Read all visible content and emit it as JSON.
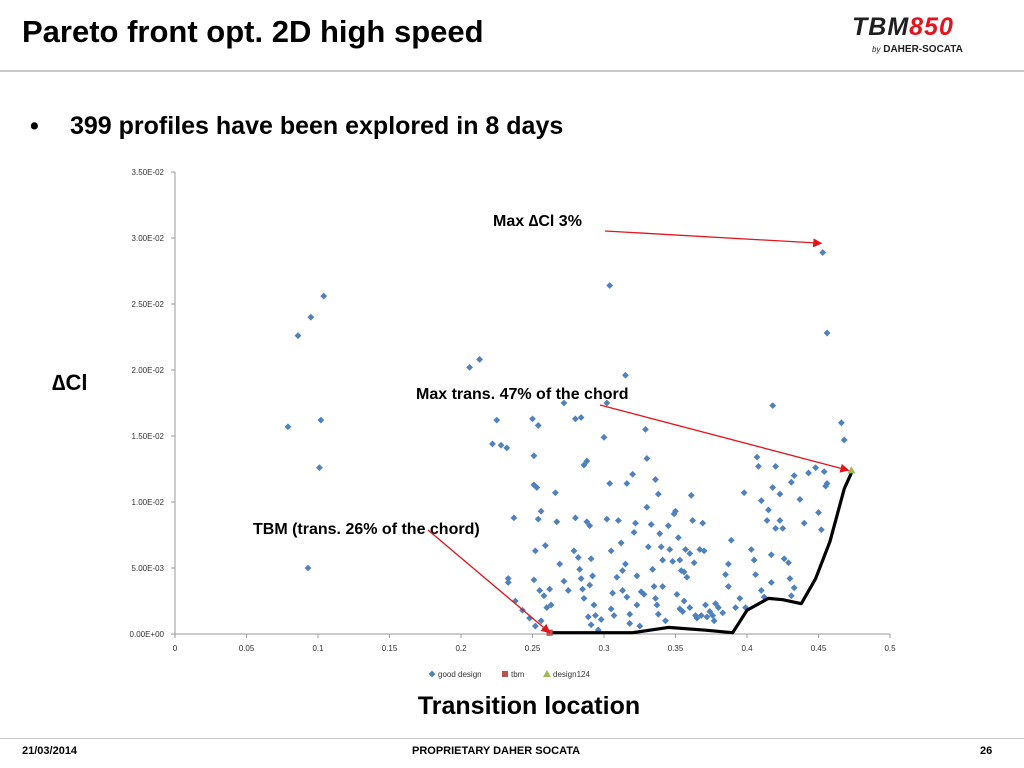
{
  "slide": {
    "title": "Pareto front opt. 2D high speed",
    "bullet_marker": "•",
    "bullet_text": "399 profiles have been explored in 8 days"
  },
  "logo": {
    "part1": "TBM",
    "part2": "850",
    "by": "by",
    "company": "DAHER-SOCATA"
  },
  "footer": {
    "date": "21/03/2014",
    "center": "PROPRIETARY DAHER SOCATA",
    "page": "26"
  },
  "colors": {
    "good_design": "#4f81bd",
    "tbm": "#c0504d",
    "design124": "#9bbb59",
    "arrow": "#e3141b",
    "pareto": "#000000"
  },
  "chart_data": {
    "type": "scatter",
    "xlabel": "Transition location",
    "ylabel": "∆Cl",
    "xlim": [
      0,
      0.5
    ],
    "ylim": [
      0,
      0.035
    ],
    "x_ticks": [
      "0",
      "0.05",
      "0.1",
      "0.15",
      "0.2",
      "0.25",
      "0.3",
      "0.35",
      "0.4",
      "0.45",
      "0.5"
    ],
    "y_ticks": [
      "0.00E+00",
      "5.00E-03",
      "1.00E-02",
      "1.50E-02",
      "2.00E-02",
      "2.50E-02",
      "3.00E-02",
      "3.50E-02"
    ],
    "grid": false,
    "legend_position": "bottom",
    "series": [
      {
        "name": "good design",
        "marker": "diamond",
        "points": [
          [
            0.079,
            0.0157
          ],
          [
            0.086,
            0.0226
          ],
          [
            0.095,
            0.024
          ],
          [
            0.104,
            0.0256
          ],
          [
            0.102,
            0.0162
          ],
          [
            0.101,
            0.0126
          ],
          [
            0.093,
            0.005
          ],
          [
            0.206,
            0.0202
          ],
          [
            0.213,
            0.0208
          ],
          [
            0.222,
            0.0144
          ],
          [
            0.225,
            0.0162
          ],
          [
            0.228,
            0.0143
          ],
          [
            0.232,
            0.0141
          ],
          [
            0.233,
            0.0042
          ],
          [
            0.233,
            0.0039
          ],
          [
            0.237,
            0.0088
          ],
          [
            0.238,
            0.0025
          ],
          [
            0.243,
            0.0018
          ],
          [
            0.248,
            0.0012
          ],
          [
            0.252,
            0.0006
          ],
          [
            0.255,
            0.0033
          ],
          [
            0.258,
            0.0029
          ],
          [
            0.26,
            0.002
          ],
          [
            0.256,
            0.001
          ],
          [
            0.259,
            0.0004
          ],
          [
            0.263,
            0.0022
          ],
          [
            0.25,
            0.0163
          ],
          [
            0.254,
            0.0158
          ],
          [
            0.251,
            0.0135
          ],
          [
            0.251,
            0.0113
          ],
          [
            0.253,
            0.0111
          ],
          [
            0.256,
            0.0093
          ],
          [
            0.254,
            0.0087
          ],
          [
            0.252,
            0.0063
          ],
          [
            0.259,
            0.0067
          ],
          [
            0.251,
            0.0041
          ],
          [
            0.262,
            0.0034
          ],
          [
            0.266,
            0.0107
          ],
          [
            0.267,
            0.0085
          ],
          [
            0.269,
            0.0053
          ],
          [
            0.272,
            0.004
          ],
          [
            0.275,
            0.0033
          ],
          [
            0.272,
            0.0175
          ],
          [
            0.28,
            0.0163
          ],
          [
            0.284,
            0.0164
          ],
          [
            0.286,
            0.0128
          ],
          [
            0.288,
            0.0131
          ],
          [
            0.28,
            0.0088
          ],
          [
            0.279,
            0.0063
          ],
          [
            0.282,
            0.0058
          ],
          [
            0.283,
            0.0049
          ],
          [
            0.284,
            0.0042
          ],
          [
            0.285,
            0.0034
          ],
          [
            0.286,
            0.0027
          ],
          [
            0.288,
            0.0085
          ],
          [
            0.29,
            0.0082
          ],
          [
            0.291,
            0.0057
          ],
          [
            0.292,
            0.0044
          ],
          [
            0.29,
            0.0037
          ],
          [
            0.289,
            0.0013
          ],
          [
            0.291,
            0.0007
          ],
          [
            0.293,
            0.0022
          ],
          [
            0.294,
            0.0014
          ],
          [
            0.296,
            0.0003
          ],
          [
            0.298,
            0.0011
          ],
          [
            0.3,
            0.0149
          ],
          [
            0.302,
            0.0087
          ],
          [
            0.302,
            0.0175
          ],
          [
            0.304,
            0.0264
          ],
          [
            0.304,
            0.0114
          ],
          [
            0.305,
            0.0063
          ],
          [
            0.306,
            0.0031
          ],
          [
            0.305,
            0.0019
          ],
          [
            0.307,
            0.0014
          ],
          [
            0.309,
            0.0043
          ],
          [
            0.31,
            0.0086
          ],
          [
            0.312,
            0.0069
          ],
          [
            0.313,
            0.0048
          ],
          [
            0.313,
            0.0033
          ],
          [
            0.315,
            0.0196
          ],
          [
            0.316,
            0.0114
          ],
          [
            0.315,
            0.0053
          ],
          [
            0.316,
            0.0028
          ],
          [
            0.318,
            0.0015
          ],
          [
            0.318,
            0.0008
          ],
          [
            0.32,
            0.0121
          ],
          [
            0.321,
            0.0077
          ],
          [
            0.322,
            0.0084
          ],
          [
            0.323,
            0.0044
          ],
          [
            0.323,
            0.0022
          ],
          [
            0.325,
            0.0006
          ],
          [
            0.326,
            0.0032
          ],
          [
            0.328,
            0.003
          ],
          [
            0.329,
            0.0155
          ],
          [
            0.33,
            0.0133
          ],
          [
            0.33,
            0.0096
          ],
          [
            0.331,
            0.0066
          ],
          [
            0.333,
            0.0083
          ],
          [
            0.334,
            0.0049
          ],
          [
            0.335,
            0.0036
          ],
          [
            0.336,
            0.0027
          ],
          [
            0.337,
            0.0022
          ],
          [
            0.338,
            0.0015
          ],
          [
            0.336,
            0.0117
          ],
          [
            0.338,
            0.0106
          ],
          [
            0.339,
            0.0076
          ],
          [
            0.34,
            0.0066
          ],
          [
            0.341,
            0.0056
          ],
          [
            0.341,
            0.0036
          ],
          [
            0.343,
            0.001
          ],
          [
            0.345,
            0.0082
          ],
          [
            0.346,
            0.0064
          ],
          [
            0.348,
            0.0055
          ],
          [
            0.349,
            0.0091
          ],
          [
            0.35,
            0.0093
          ],
          [
            0.351,
            0.003
          ],
          [
            0.352,
            0.0073
          ],
          [
            0.353,
            0.0019
          ],
          [
            0.353,
            0.0056
          ],
          [
            0.354,
            0.0048
          ],
          [
            0.355,
            0.0017
          ],
          [
            0.356,
            0.0025
          ],
          [
            0.356,
            0.0047
          ],
          [
            0.357,
            0.0064
          ],
          [
            0.358,
            0.0043
          ],
          [
            0.36,
            0.0061
          ],
          [
            0.36,
            0.002
          ],
          [
            0.361,
            0.0105
          ],
          [
            0.362,
            0.0086
          ],
          [
            0.363,
            0.0054
          ],
          [
            0.364,
            0.0014
          ],
          [
            0.365,
            0.0012
          ],
          [
            0.367,
            0.0064
          ],
          [
            0.368,
            0.0014
          ],
          [
            0.369,
            0.0084
          ],
          [
            0.37,
            0.0063
          ],
          [
            0.371,
            0.0022
          ],
          [
            0.372,
            0.0013
          ],
          [
            0.374,
            0.0017
          ],
          [
            0.376,
            0.0014
          ],
          [
            0.377,
            0.001
          ],
          [
            0.378,
            0.0023
          ],
          [
            0.38,
            0.002
          ],
          [
            0.383,
            0.0016
          ],
          [
            0.385,
            0.0045
          ],
          [
            0.387,
            0.0053
          ],
          [
            0.387,
            0.0036
          ],
          [
            0.389,
            0.0071
          ],
          [
            0.392,
            0.002
          ],
          [
            0.395,
            0.0027
          ],
          [
            0.398,
            0.0107
          ],
          [
            0.399,
            0.002
          ],
          [
            0.403,
            0.0064
          ],
          [
            0.405,
            0.0056
          ],
          [
            0.406,
            0.0045
          ],
          [
            0.408,
            0.0127
          ],
          [
            0.41,
            0.0101
          ],
          [
            0.41,
            0.0033
          ],
          [
            0.412,
            0.0028
          ],
          [
            0.414,
            0.0086
          ],
          [
            0.415,
            0.0094
          ],
          [
            0.417,
            0.006
          ],
          [
            0.417,
            0.0039
          ],
          [
            0.418,
            0.0111
          ],
          [
            0.42,
            0.0127
          ],
          [
            0.42,
            0.008
          ],
          [
            0.423,
            0.0086
          ],
          [
            0.425,
            0.008
          ],
          [
            0.426,
            0.0057
          ],
          [
            0.429,
            0.0054
          ],
          [
            0.43,
            0.0042
          ],
          [
            0.431,
            0.0029
          ],
          [
            0.433,
            0.0035
          ],
          [
            0.407,
            0.0134
          ],
          [
            0.418,
            0.0173
          ],
          [
            0.423,
            0.0106
          ],
          [
            0.431,
            0.0115
          ],
          [
            0.433,
            0.012
          ],
          [
            0.437,
            0.0102
          ],
          [
            0.44,
            0.0084
          ],
          [
            0.443,
            0.0122
          ],
          [
            0.448,
            0.0126
          ],
          [
            0.45,
            0.0092
          ],
          [
            0.452,
            0.0079
          ],
          [
            0.454,
            0.0123
          ],
          [
            0.455,
            0.0112
          ],
          [
            0.456,
            0.0114
          ],
          [
            0.453,
            0.0289
          ],
          [
            0.456,
            0.0228
          ],
          [
            0.466,
            0.016
          ],
          [
            0.468,
            0.0147
          ]
        ]
      },
      {
        "name": "tbm",
        "marker": "square",
        "points": [
          [
            0.262,
            0.0001
          ]
        ]
      },
      {
        "name": "design124",
        "marker": "triangle",
        "points": [
          [
            0.473,
            0.0124
          ]
        ]
      }
    ],
    "pareto_front": [
      [
        0.263,
        0.0001
      ],
      [
        0.3,
        0.0001
      ],
      [
        0.32,
        0.0001
      ],
      [
        0.345,
        0.0005
      ],
      [
        0.37,
        0.0003
      ],
      [
        0.39,
        0.0001
      ],
      [
        0.4,
        0.0018
      ],
      [
        0.415,
        0.0027
      ],
      [
        0.425,
        0.0026
      ],
      [
        0.438,
        0.0023
      ],
      [
        0.448,
        0.0042
      ],
      [
        0.458,
        0.007
      ],
      [
        0.468,
        0.011
      ],
      [
        0.473,
        0.0122
      ]
    ],
    "annotations": [
      {
        "text": "Max ∆Cl 3%",
        "target": [
          0.452,
          0.0296
        ]
      },
      {
        "text": "Max trans. 47% of the chord",
        "target": [
          0.471,
          0.0124
        ]
      },
      {
        "text": "TBM (trans. 26% of the chord)",
        "target": [
          0.262,
          0.0001
        ]
      }
    ]
  }
}
